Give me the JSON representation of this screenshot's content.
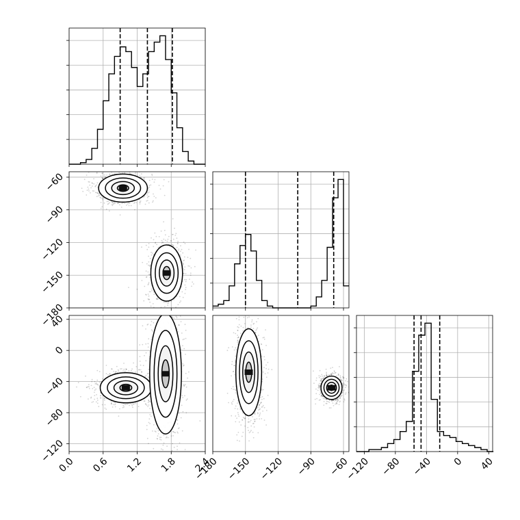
{
  "chart_data": {
    "type": "corner-plot",
    "grid": true,
    "params": [
      {
        "range": [
          0.0,
          2.4
        ],
        "ticks": [
          0.0,
          0.6,
          1.2,
          1.8,
          2.4
        ],
        "tick_labels": [
          "0.0",
          "0.6",
          "1.2",
          "1.8",
          "2.4"
        ]
      },
      {
        "range": [
          -180,
          -55
        ],
        "ticks": [
          -180,
          -150,
          -120,
          -90,
          -60
        ],
        "tick_labels": [
          "−180",
          "−150",
          "−120",
          "−90",
          "−60"
        ]
      },
      {
        "range": [
          -130,
          45
        ],
        "ticks": [
          -120,
          -80,
          -40,
          0,
          40
        ],
        "tick_labels": [
          "−120",
          "−80",
          "−40",
          "0",
          "40"
        ]
      }
    ],
    "histograms": [
      {
        "param": 0,
        "bin_edges": [
          0.0,
          0.1,
          0.2,
          0.3,
          0.4,
          0.5,
          0.6,
          0.7,
          0.8,
          0.9,
          1.0,
          1.1,
          1.2,
          1.3,
          1.4,
          1.5,
          1.6,
          1.7,
          1.8,
          1.9,
          2.0,
          2.1,
          2.2,
          2.3,
          2.4
        ],
        "counts": [
          0,
          0,
          1,
          3,
          10,
          22,
          40,
          57,
          68,
          74,
          71,
          61,
          49,
          57,
          71,
          77,
          81,
          66,
          45,
          23,
          8,
          2,
          0,
          0
        ],
        "quantiles": [
          0.9,
          1.38,
          1.82
        ]
      },
      {
        "param": 1,
        "bin_edges": [
          -180,
          -175,
          -170,
          -165,
          -160,
          -155,
          -150,
          -145,
          -140,
          -135,
          -130,
          -125,
          -120,
          -115,
          -110,
          -105,
          -100,
          -95,
          -90,
          -85,
          -80,
          -75,
          -70,
          -65,
          -60,
          -55
        ],
        "counts": [
          1,
          2,
          4,
          12,
          24,
          34,
          40,
          31,
          15,
          4,
          1,
          0,
          0,
          0,
          0,
          0,
          0,
          0,
          1,
          6,
          15,
          33,
          60,
          70,
          12
        ],
        "quantiles": [
          -150,
          -102,
          -69
        ]
      },
      {
        "param": 2,
        "bin_edges": [
          -130,
          -122,
          -114,
          -106,
          -98,
          -90,
          -82,
          -74,
          -66,
          -58,
          -50,
          -42,
          -34,
          -26,
          -18,
          -10,
          -2,
          6,
          14,
          22,
          30,
          38,
          46
        ],
        "counts": [
          0,
          0,
          1,
          1,
          2,
          4,
          6,
          10,
          15,
          40,
          58,
          64,
          26,
          10,
          8,
          7,
          5,
          4,
          3,
          2,
          1,
          0
        ],
        "quantiles": [
          -56,
          -47,
          -23
        ]
      }
    ],
    "scatter_panels": [
      {
        "x_param": 0,
        "y_param": 1,
        "modes": [
          {
            "x": 0.95,
            "y": -70,
            "sx": 0.2,
            "sy": 6
          },
          {
            "x": 1.72,
            "y": -148,
            "sx": 0.13,
            "sy": 12
          }
        ]
      },
      {
        "x_param": 0,
        "y_param": 2,
        "modes": [
          {
            "x": 1.0,
            "y": -48,
            "sx": 0.21,
            "sy": 9
          },
          {
            "x": 1.7,
            "y": -30,
            "sx": 0.13,
            "sy": 36
          }
        ]
      },
      {
        "x_param": 1,
        "y_param": 2,
        "modes": [
          {
            "x": -147,
            "y": -28,
            "sx": 5.5,
            "sy": 26
          },
          {
            "x": -71,
            "y": -48,
            "sx": 4.5,
            "sy": 7
          }
        ]
      }
    ]
  }
}
